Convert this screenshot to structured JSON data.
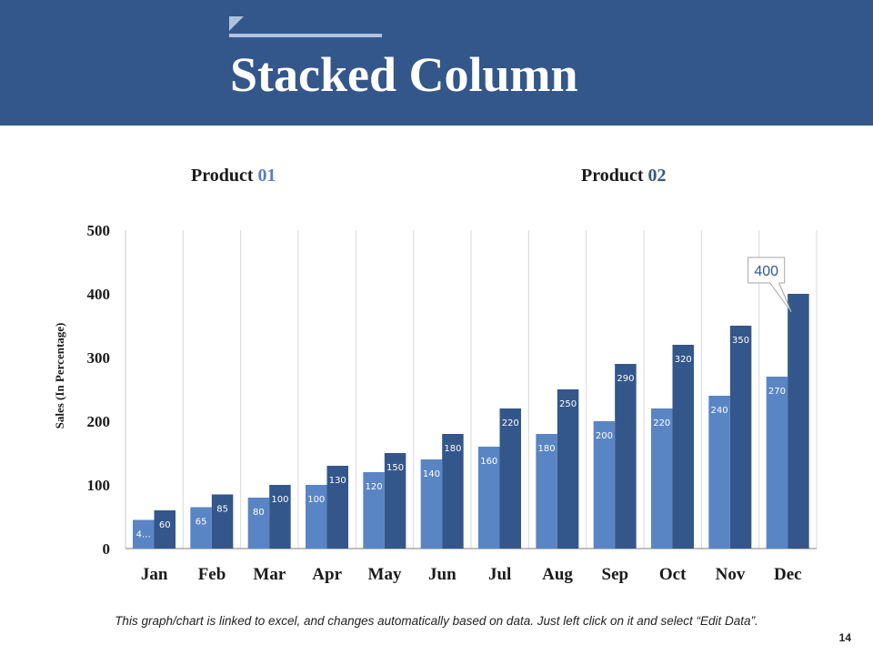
{
  "slide": {
    "title": "Stacked Column",
    "footnote": "This graph/chart is linked to excel, and changes automatically based on data. Just left click on it and select “Edit Data”.",
    "page_number": "14"
  },
  "legend": {
    "p1_word": "Product",
    "p1_num": "01",
    "p2_word": "Product",
    "p2_num": "02"
  },
  "colors": {
    "header": "#33578a",
    "header_accent": "#aec3e0",
    "product_01": "#5a85c4",
    "product_02": "#33578a"
  },
  "chart_data": {
    "type": "bar",
    "title": "",
    "xlabel": "",
    "ylabel": "Sales  (In Percentage)",
    "ylim": [
      0,
      500
    ],
    "yticks": [
      0,
      100,
      200,
      300,
      400,
      500
    ],
    "categories": [
      "Jan",
      "Feb",
      "Mar",
      "Apr",
      "May",
      "Jun",
      "Jul",
      "Aug",
      "Sep",
      "Oct",
      "Nov",
      "Dec"
    ],
    "series": [
      {
        "name": "Product 01",
        "values": [
          45,
          65,
          80,
          100,
          120,
          140,
          160,
          180,
          200,
          220,
          240,
          270
        ],
        "labels": [
          "4…",
          "65",
          "80",
          "100",
          "120",
          "140",
          "160",
          "180",
          "200",
          "220",
          "240",
          "270"
        ]
      },
      {
        "name": "Product 02",
        "values": [
          60,
          85,
          100,
          130,
          150,
          180,
          220,
          250,
          290,
          320,
          350,
          400
        ],
        "labels": [
          "60",
          "85",
          "100",
          "130",
          "150",
          "180",
          "220",
          "250",
          "290",
          "320",
          "350",
          ""
        ]
      }
    ],
    "callout": {
      "text": "400",
      "category": "Dec",
      "series": "Product 02"
    },
    "grid": "vertical",
    "legend": "top"
  }
}
